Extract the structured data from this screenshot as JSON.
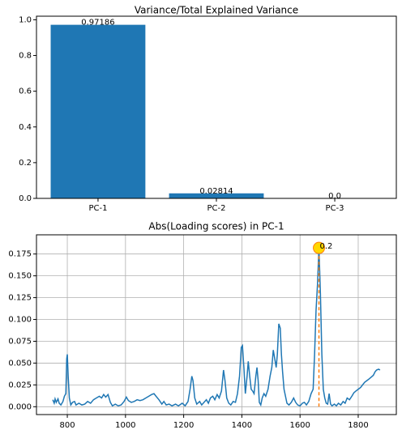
{
  "chart_data": [
    {
      "type": "bar",
      "title": "Variance/Total Explained Variance",
      "categories": [
        "PC-1",
        "PC-2",
        "PC-3"
      ],
      "values": [
        0.97186,
        0.02814,
        0.0
      ],
      "value_labels": [
        "0.97186",
        "0.02814",
        "0.0"
      ],
      "color": "#1f77b4",
      "ylim": [
        0,
        1.02
      ],
      "yticks": [
        {
          "value": 0,
          "label": "0.0"
        },
        0.2,
        0.4,
        0.6,
        0.8,
        {
          "value": 1,
          "label": "1.0"
        }
      ],
      "grid": false
    },
    {
      "type": "line",
      "title": "Abs(Loading scores) in PC-1",
      "color": "#1f77b4",
      "grid": true,
      "xlim": [
        694,
        1931
      ],
      "xticks": [
        800,
        1000,
        1200,
        1400,
        1600,
        1800
      ],
      "ylim": [
        -0.009,
        0.197
      ],
      "yticks": [
        {
          "value": 0,
          "label": "0.000"
        },
        0.025,
        {
          "value": 0.05,
          "label": "0.050"
        },
        0.075,
        {
          "value": 0.1,
          "label": "0.100"
        },
        0.125,
        {
          "value": 0.15,
          "label": "0.150"
        },
        0.175
      ],
      "annotation": {
        "text": "0.2",
        "x": 1665,
        "y": 0.182,
        "marker_color": "#ffd700",
        "edge_color": "#ff7f0e"
      },
      "x": [
        750,
        755,
        758,
        762,
        768,
        772,
        778,
        785,
        790,
        795,
        798,
        800,
        803,
        807,
        812,
        818,
        825,
        830,
        840,
        850,
        860,
        870,
        880,
        890,
        900,
        910,
        918,
        925,
        932,
        940,
        948,
        955,
        965,
        975,
        985,
        995,
        1003,
        1010,
        1020,
        1030,
        1040,
        1050,
        1060,
        1070,
        1080,
        1090,
        1098,
        1105,
        1115,
        1125,
        1132,
        1140,
        1150,
        1160,
        1172,
        1182,
        1195,
        1205,
        1215,
        1222,
        1228,
        1232,
        1238,
        1245,
        1255,
        1262,
        1270,
        1278,
        1285,
        1292,
        1300,
        1307,
        1315,
        1322,
        1330,
        1337,
        1342,
        1348,
        1355,
        1362,
        1370,
        1378,
        1385,
        1392,
        1398,
        1402,
        1407,
        1412,
        1418,
        1422,
        1427,
        1432,
        1437,
        1442,
        1448,
        1452,
        1456,
        1460,
        1465,
        1470,
        1476,
        1482,
        1490,
        1497,
        1503,
        1508,
        1513,
        1518,
        1522,
        1527,
        1532,
        1536,
        1540,
        1545,
        1550,
        1555,
        1562,
        1570,
        1578,
        1585,
        1592,
        1600,
        1608,
        1615,
        1622,
        1630,
        1638,
        1645,
        1650,
        1655,
        1660,
        1665,
        1670,
        1675,
        1680,
        1685,
        1690,
        1695,
        1700,
        1705,
        1710,
        1718,
        1725,
        1732,
        1740,
        1748,
        1755,
        1762,
        1770,
        1778,
        1785,
        1792,
        1800,
        1808,
        1815,
        1822,
        1830,
        1838,
        1845,
        1852,
        1858,
        1863,
        1870,
        1875
      ],
      "values": [
        0.008,
        0.004,
        0.009,
        0.005,
        0.009,
        0.004,
        0.002,
        0.006,
        0.012,
        0.015,
        0.055,
        0.06,
        0.035,
        0.01,
        0.002,
        0.005,
        0.006,
        0.002,
        0.004,
        0.002,
        0.003,
        0.006,
        0.004,
        0.008,
        0.01,
        0.012,
        0.01,
        0.014,
        0.011,
        0.014,
        0.005,
        0.001,
        0.003,
        0.001,
        0.002,
        0.006,
        0.011,
        0.007,
        0.005,
        0.006,
        0.008,
        0.007,
        0.008,
        0.01,
        0.012,
        0.014,
        0.015,
        0.012,
        0.008,
        0.003,
        0.006,
        0.002,
        0.003,
        0.001,
        0.003,
        0.001,
        0.004,
        0.001,
        0.006,
        0.02,
        0.035,
        0.03,
        0.01,
        0.003,
        0.006,
        0.002,
        0.005,
        0.008,
        0.004,
        0.01,
        0.012,
        0.008,
        0.014,
        0.01,
        0.018,
        0.042,
        0.03,
        0.01,
        0.004,
        0.002,
        0.006,
        0.005,
        0.015,
        0.035,
        0.068,
        0.07,
        0.045,
        0.015,
        0.035,
        0.052,
        0.035,
        0.02,
        0.018,
        0.015,
        0.035,
        0.045,
        0.03,
        0.005,
        0.002,
        0.01,
        0.015,
        0.012,
        0.02,
        0.035,
        0.045,
        0.065,
        0.055,
        0.045,
        0.06,
        0.095,
        0.09,
        0.06,
        0.04,
        0.02,
        0.012,
        0.004,
        0.002,
        0.005,
        0.01,
        0.005,
        0.002,
        0.001,
        0.004,
        0.005,
        0.002,
        0.006,
        0.015,
        0.02,
        0.06,
        0.11,
        0.14,
        0.182,
        0.13,
        0.06,
        0.02,
        0.01,
        0.004,
        0.003,
        0.015,
        0.003,
        0.001,
        0.003,
        0.001,
        0.004,
        0.002,
        0.006,
        0.004,
        0.01,
        0.008,
        0.012,
        0.016,
        0.018,
        0.02,
        0.022,
        0.025,
        0.028,
        0.03,
        0.032,
        0.034,
        0.036,
        0.04,
        0.042,
        0.043,
        0.042
      ]
    }
  ]
}
